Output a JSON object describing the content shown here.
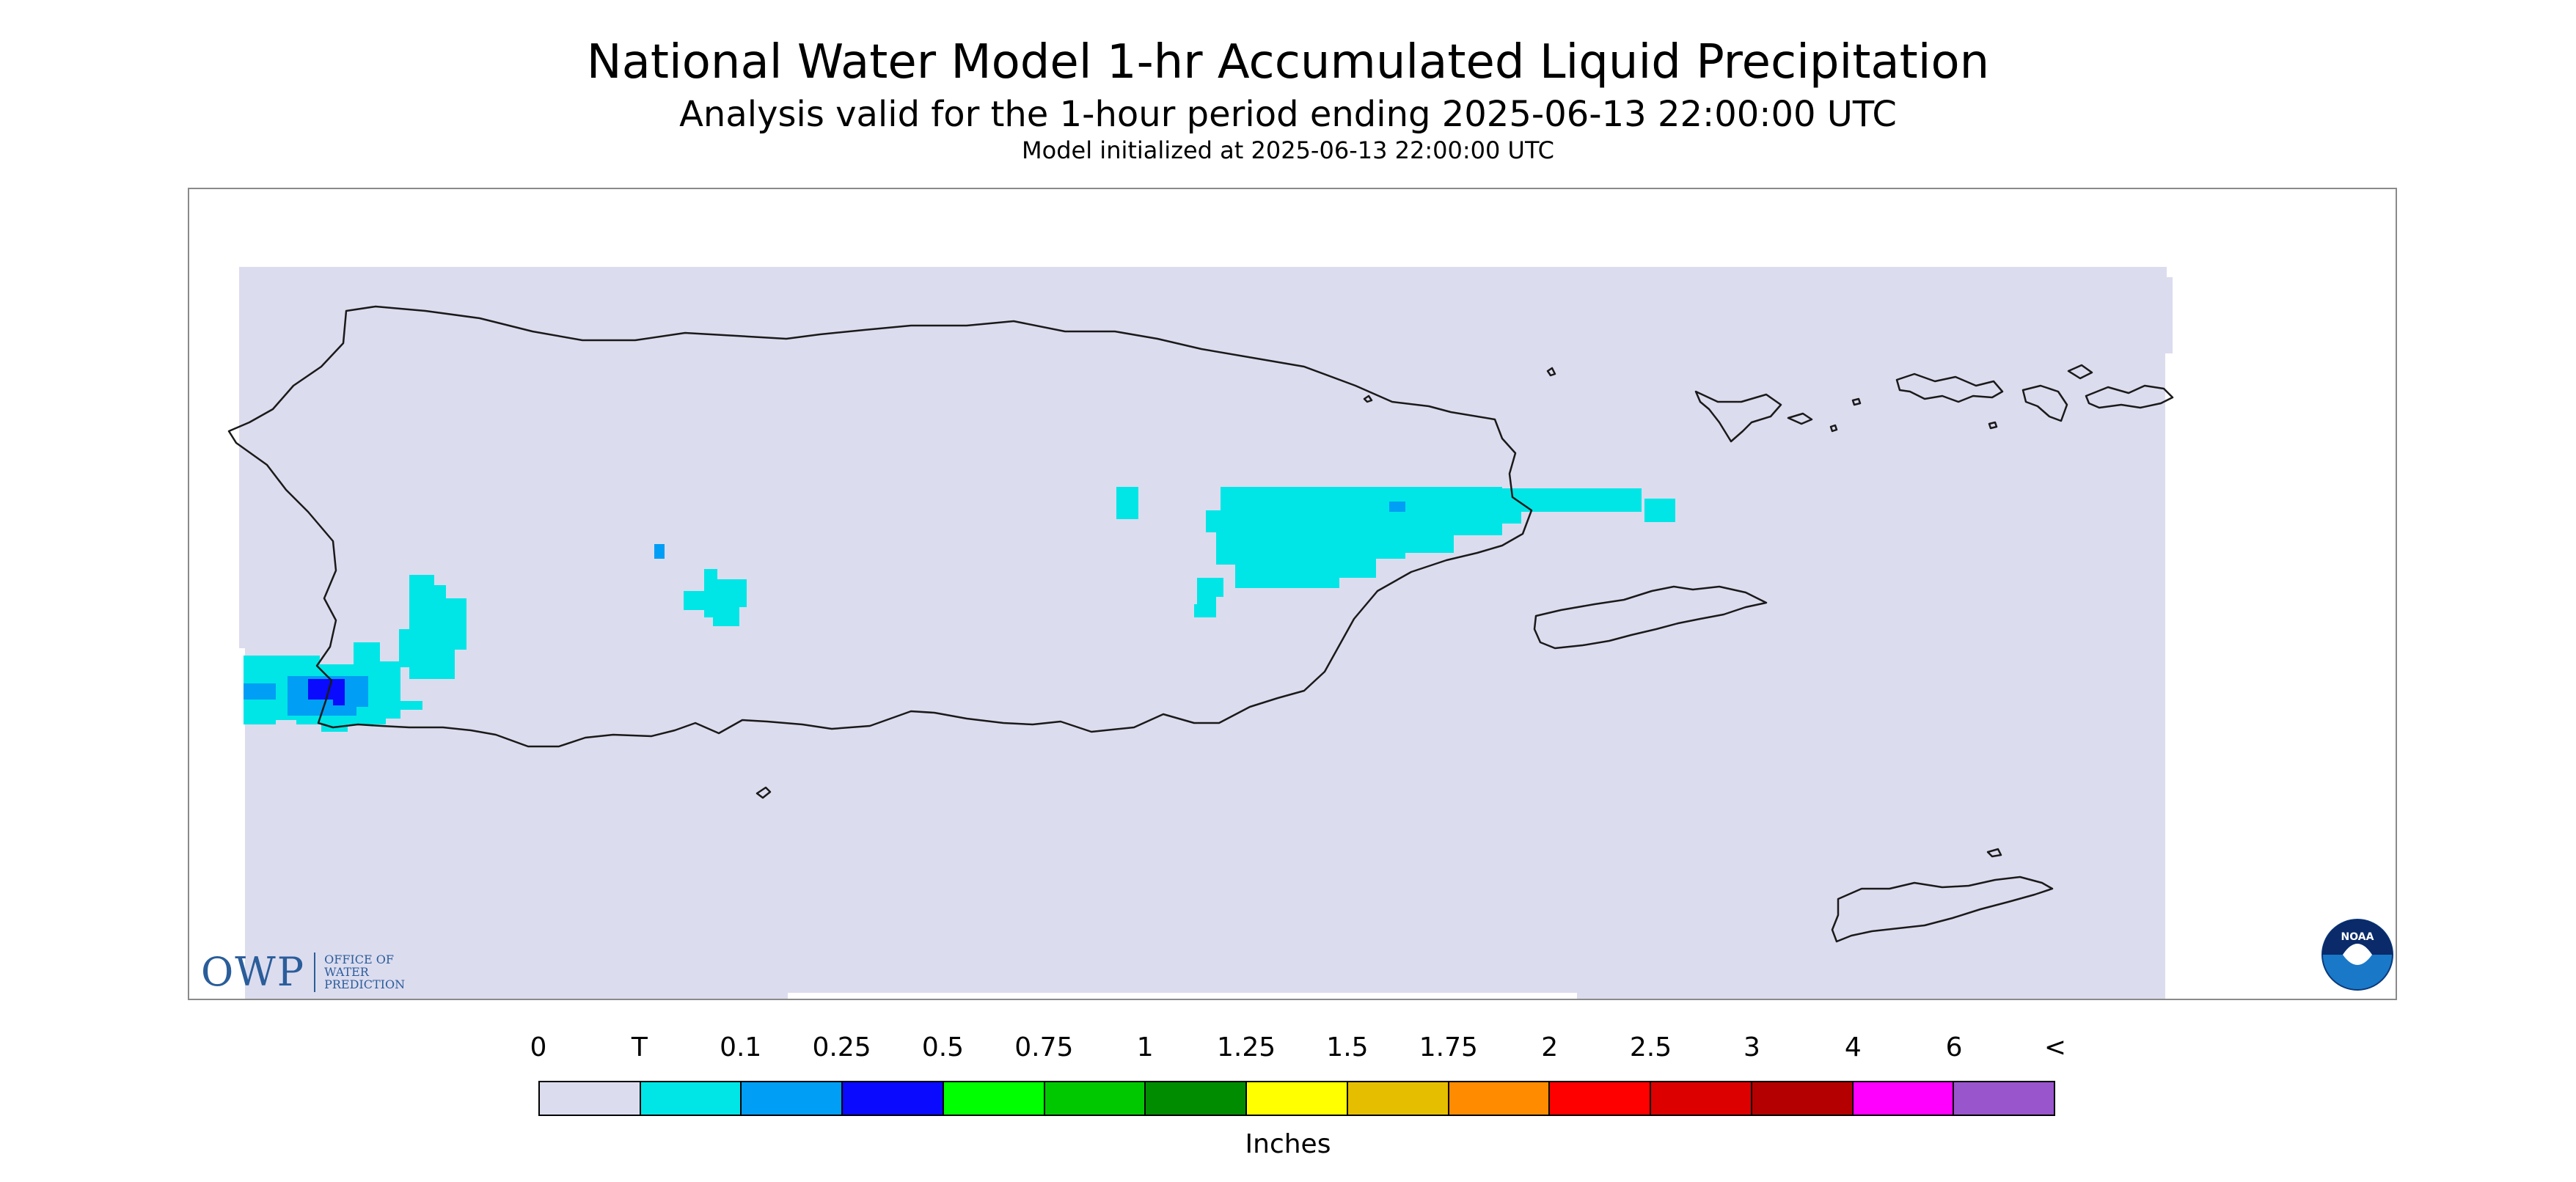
{
  "header": {
    "title": "National Water Model 1-hr Accumulated Liquid Precipitation",
    "subtitle": "Analysis valid for the 1-hour period ending 2025-06-13 22:00:00 UTC",
    "init": "Model initialized at 2025-06-13 22:00:00 UTC"
  },
  "map": {
    "background_color": "#dcdcef",
    "outline_color": "#1a1a1a",
    "region": "Puerto Rico and U.S. Virgin Islands"
  },
  "legend": {
    "ticks": [
      "0",
      "T",
      "0.1",
      "0.25",
      "0.5",
      "0.75",
      "1",
      "1.25",
      "1.5",
      "1.75",
      "2",
      "2.5",
      "3",
      "4",
      "6",
      "<"
    ],
    "colors": [
      "#dcdcef",
      "#00e6e6",
      "#009ef5",
      "#0a0aff",
      "#00ff00",
      "#00c800",
      "#008c00",
      "#ffff00",
      "#e6be00",
      "#ff8c00",
      "#ff0000",
      "#dc0000",
      "#b40000",
      "#ff00ff",
      "#9955cc"
    ],
    "units": "Inches"
  },
  "logos": {
    "owp_mark": "OWP",
    "owp_text": [
      "Office of",
      "Water",
      "Prediction"
    ],
    "noaa": "NOAA"
  }
}
